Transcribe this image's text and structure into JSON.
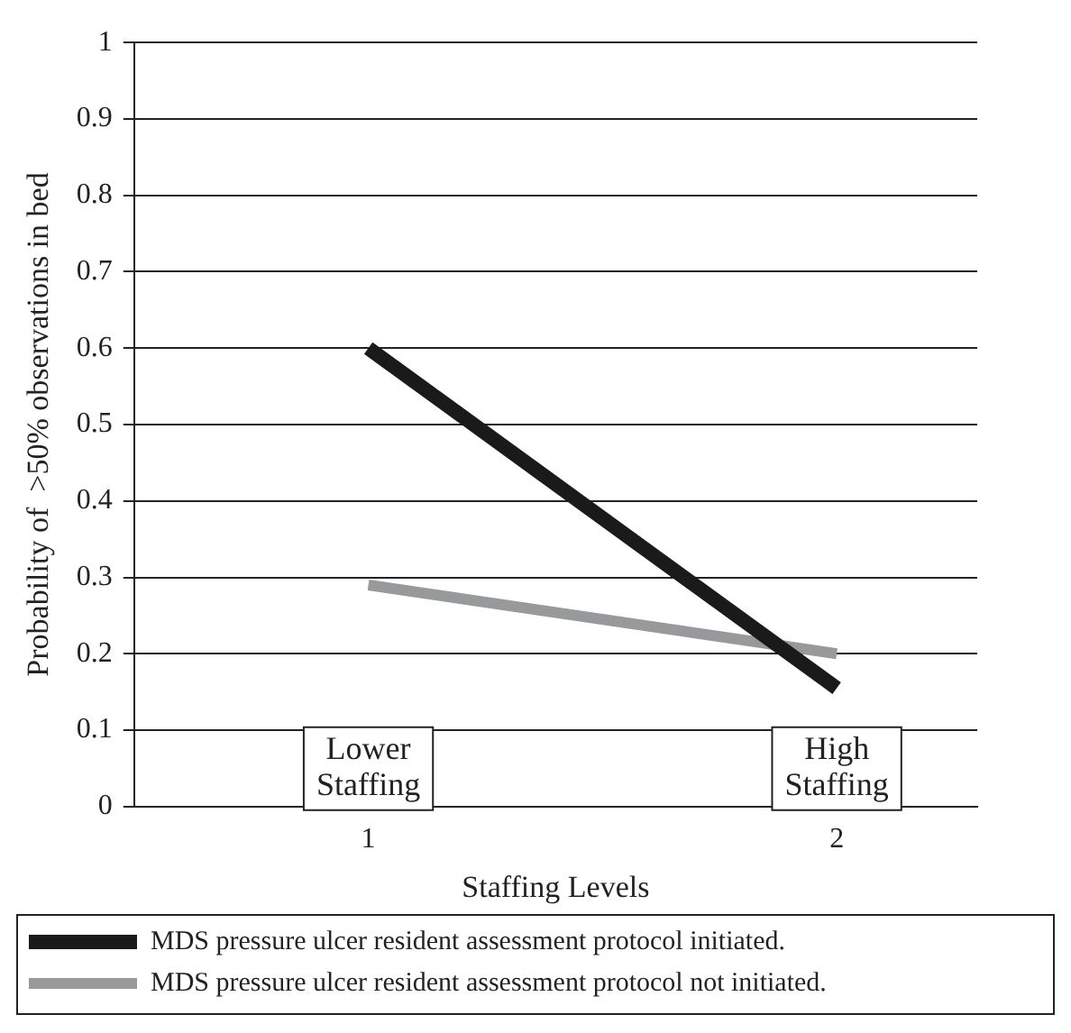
{
  "chart_data": {
    "type": "line",
    "xlabel": "Staffing Levels",
    "ylabel": "Probability of  >50% observations in bed",
    "x": [
      1,
      2
    ],
    "xlim": [
      0.5,
      2.3
    ],
    "xticks": [
      1,
      2
    ],
    "ylim": [
      0,
      1
    ],
    "yticks": [
      0,
      0.1,
      0.2,
      0.3,
      0.4,
      0.5,
      0.6,
      0.7,
      0.8,
      0.9,
      1
    ],
    "grid": "y",
    "legend": "bottom",
    "marker": "none",
    "series": [
      {
        "name": "MDS pressure ulcer resident assessment protocol initiated.",
        "color": "#1a1a1a",
        "values": [
          0.6,
          0.155
        ]
      },
      {
        "name": "MDS pressure ulcer resident assessment protocol not initiated.",
        "color": "#98999b",
        "values": [
          0.29,
          0.2
        ]
      }
    ],
    "annotations": [
      "Lower\nStaffing",
      "High\nStaffing"
    ]
  }
}
